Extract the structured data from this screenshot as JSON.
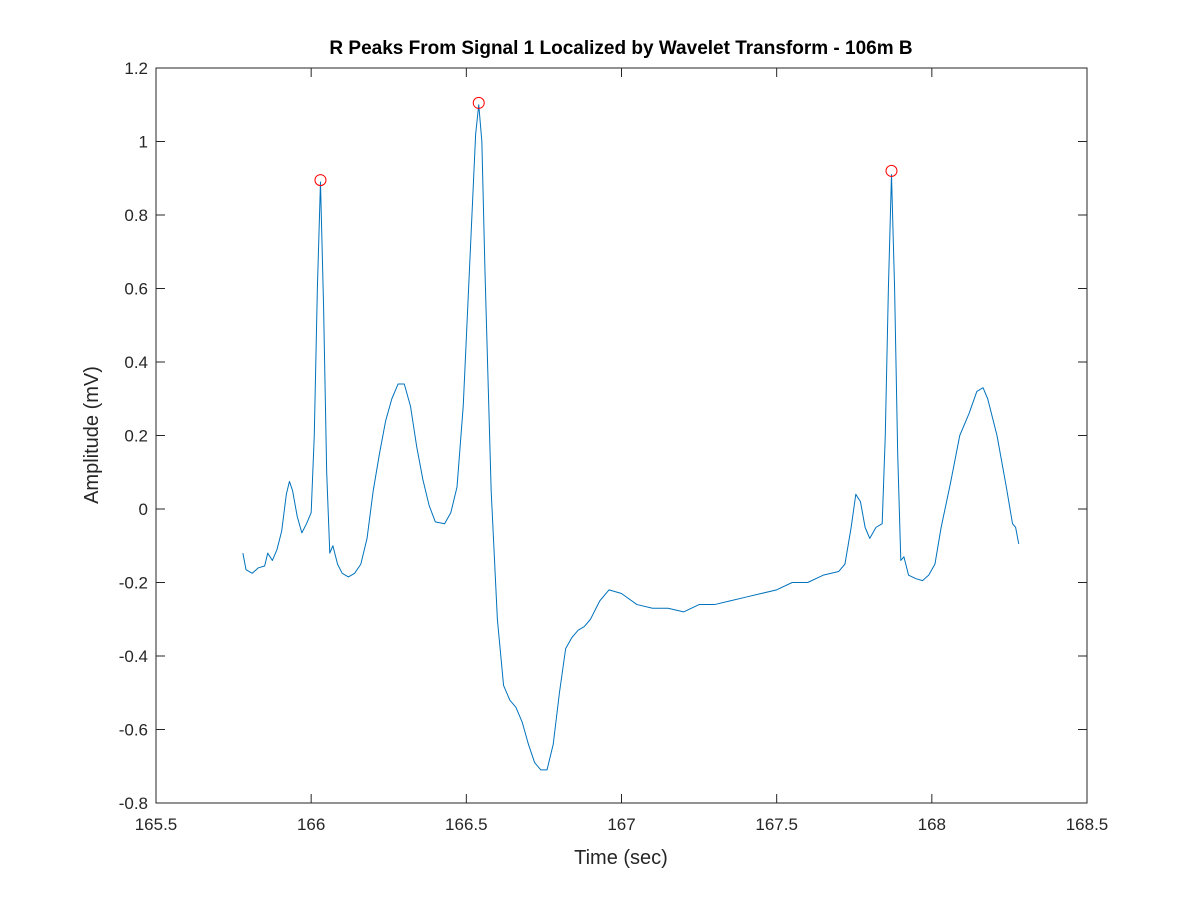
{
  "chart_data": {
    "type": "line",
    "title": "R Peaks From Signal 1 Localized by Wavelet Transform - 106m B",
    "xlabel": "Time (sec)",
    "ylabel": "Amplitude (mV)",
    "xlim": [
      165.5,
      168.5
    ],
    "ylim": [
      -0.8,
      1.2
    ],
    "x_ticks": [
      165.5,
      166,
      166.5,
      167,
      167.5,
      168,
      168.5
    ],
    "x_tick_labels": [
      "165.5",
      "166",
      "166.5",
      "167",
      "167.5",
      "168",
      "168.5"
    ],
    "y_ticks": [
      -0.8,
      -0.6,
      -0.4,
      -0.2,
      0,
      0.2,
      0.4,
      0.6,
      0.8,
      1,
      1.2
    ],
    "y_tick_labels": [
      "-0.8",
      "-0.6",
      "-0.4",
      "-0.2",
      "0",
      "0.2",
      "0.4",
      "0.6",
      "0.8",
      "1",
      "1.2"
    ],
    "grid": false,
    "box": true,
    "series": [
      {
        "color": "#0072BD",
        "style": "line",
        "points": [
          [
            165.78,
            -0.12
          ],
          [
            165.79,
            -0.165
          ],
          [
            165.81,
            -0.175
          ],
          [
            165.83,
            -0.16
          ],
          [
            165.85,
            -0.155
          ],
          [
            165.86,
            -0.12
          ],
          [
            165.875,
            -0.14
          ],
          [
            165.89,
            -0.11
          ],
          [
            165.905,
            -0.06
          ],
          [
            165.92,
            0.04
          ],
          [
            165.93,
            0.075
          ],
          [
            165.94,
            0.05
          ],
          [
            165.955,
            -0.02
          ],
          [
            165.97,
            -0.065
          ],
          [
            165.985,
            -0.04
          ],
          [
            166.0,
            -0.01
          ],
          [
            166.01,
            0.2
          ],
          [
            166.02,
            0.6
          ],
          [
            166.03,
            0.89
          ],
          [
            166.04,
            0.55
          ],
          [
            166.05,
            0.1
          ],
          [
            166.06,
            -0.12
          ],
          [
            166.07,
            -0.1
          ],
          [
            166.085,
            -0.15
          ],
          [
            166.1,
            -0.175
          ],
          [
            166.12,
            -0.185
          ],
          [
            166.14,
            -0.175
          ],
          [
            166.16,
            -0.15
          ],
          [
            166.18,
            -0.08
          ],
          [
            166.2,
            0.05
          ],
          [
            166.22,
            0.15
          ],
          [
            166.24,
            0.24
          ],
          [
            166.26,
            0.3
          ],
          [
            166.28,
            0.34
          ],
          [
            166.3,
            0.34
          ],
          [
            166.32,
            0.28
          ],
          [
            166.34,
            0.17
          ],
          [
            166.36,
            0.08
          ],
          [
            166.38,
            0.01
          ],
          [
            166.4,
            -0.035
          ],
          [
            166.43,
            -0.04
          ],
          [
            166.45,
            -0.01
          ],
          [
            166.47,
            0.06
          ],
          [
            166.49,
            0.28
          ],
          [
            166.51,
            0.65
          ],
          [
            166.53,
            1.02
          ],
          [
            166.54,
            1.1
          ],
          [
            166.55,
            1.0
          ],
          [
            166.56,
            0.65
          ],
          [
            166.58,
            0.05
          ],
          [
            166.6,
            -0.3
          ],
          [
            166.62,
            -0.48
          ],
          [
            166.64,
            -0.52
          ],
          [
            166.66,
            -0.54
          ],
          [
            166.68,
            -0.58
          ],
          [
            166.7,
            -0.64
          ],
          [
            166.72,
            -0.69
          ],
          [
            166.74,
            -0.71
          ],
          [
            166.76,
            -0.71
          ],
          [
            166.78,
            -0.64
          ],
          [
            166.8,
            -0.5
          ],
          [
            166.82,
            -0.38
          ],
          [
            166.84,
            -0.35
          ],
          [
            166.86,
            -0.33
          ],
          [
            166.88,
            -0.32
          ],
          [
            166.9,
            -0.3
          ],
          [
            166.93,
            -0.25
          ],
          [
            166.96,
            -0.22
          ],
          [
            167.0,
            -0.23
          ],
          [
            167.05,
            -0.26
          ],
          [
            167.1,
            -0.27
          ],
          [
            167.15,
            -0.27
          ],
          [
            167.2,
            -0.28
          ],
          [
            167.25,
            -0.26
          ],
          [
            167.3,
            -0.26
          ],
          [
            167.35,
            -0.25
          ],
          [
            167.4,
            -0.24
          ],
          [
            167.45,
            -0.23
          ],
          [
            167.5,
            -0.22
          ],
          [
            167.55,
            -0.2
          ],
          [
            167.6,
            -0.2
          ],
          [
            167.65,
            -0.18
          ],
          [
            167.7,
            -0.17
          ],
          [
            167.72,
            -0.15
          ],
          [
            167.74,
            -0.05
          ],
          [
            167.755,
            0.04
          ],
          [
            167.77,
            0.02
          ],
          [
            167.785,
            -0.05
          ],
          [
            167.8,
            -0.08
          ],
          [
            167.82,
            -0.05
          ],
          [
            167.84,
            -0.04
          ],
          [
            167.85,
            0.2
          ],
          [
            167.86,
            0.6
          ],
          [
            167.87,
            0.91
          ],
          [
            167.88,
            0.6
          ],
          [
            167.89,
            0.15
          ],
          [
            167.9,
            -0.14
          ],
          [
            167.91,
            -0.13
          ],
          [
            167.925,
            -0.18
          ],
          [
            167.95,
            -0.19
          ],
          [
            167.97,
            -0.195
          ],
          [
            167.99,
            -0.18
          ],
          [
            168.01,
            -0.15
          ],
          [
            168.03,
            -0.05
          ],
          [
            168.06,
            0.07
          ],
          [
            168.09,
            0.2
          ],
          [
            168.12,
            0.26
          ],
          [
            168.145,
            0.32
          ],
          [
            168.165,
            0.33
          ],
          [
            168.18,
            0.3
          ],
          [
            168.21,
            0.2
          ],
          [
            168.24,
            0.06
          ],
          [
            168.26,
            -0.04
          ],
          [
            168.27,
            -0.05
          ],
          [
            168.28,
            -0.095
          ]
        ]
      },
      {
        "color": "#ff0000",
        "style": "marker-circle",
        "points": [
          [
            166.03,
            0.895
          ],
          [
            166.54,
            1.105
          ],
          [
            167.87,
            0.92
          ]
        ]
      }
    ]
  }
}
